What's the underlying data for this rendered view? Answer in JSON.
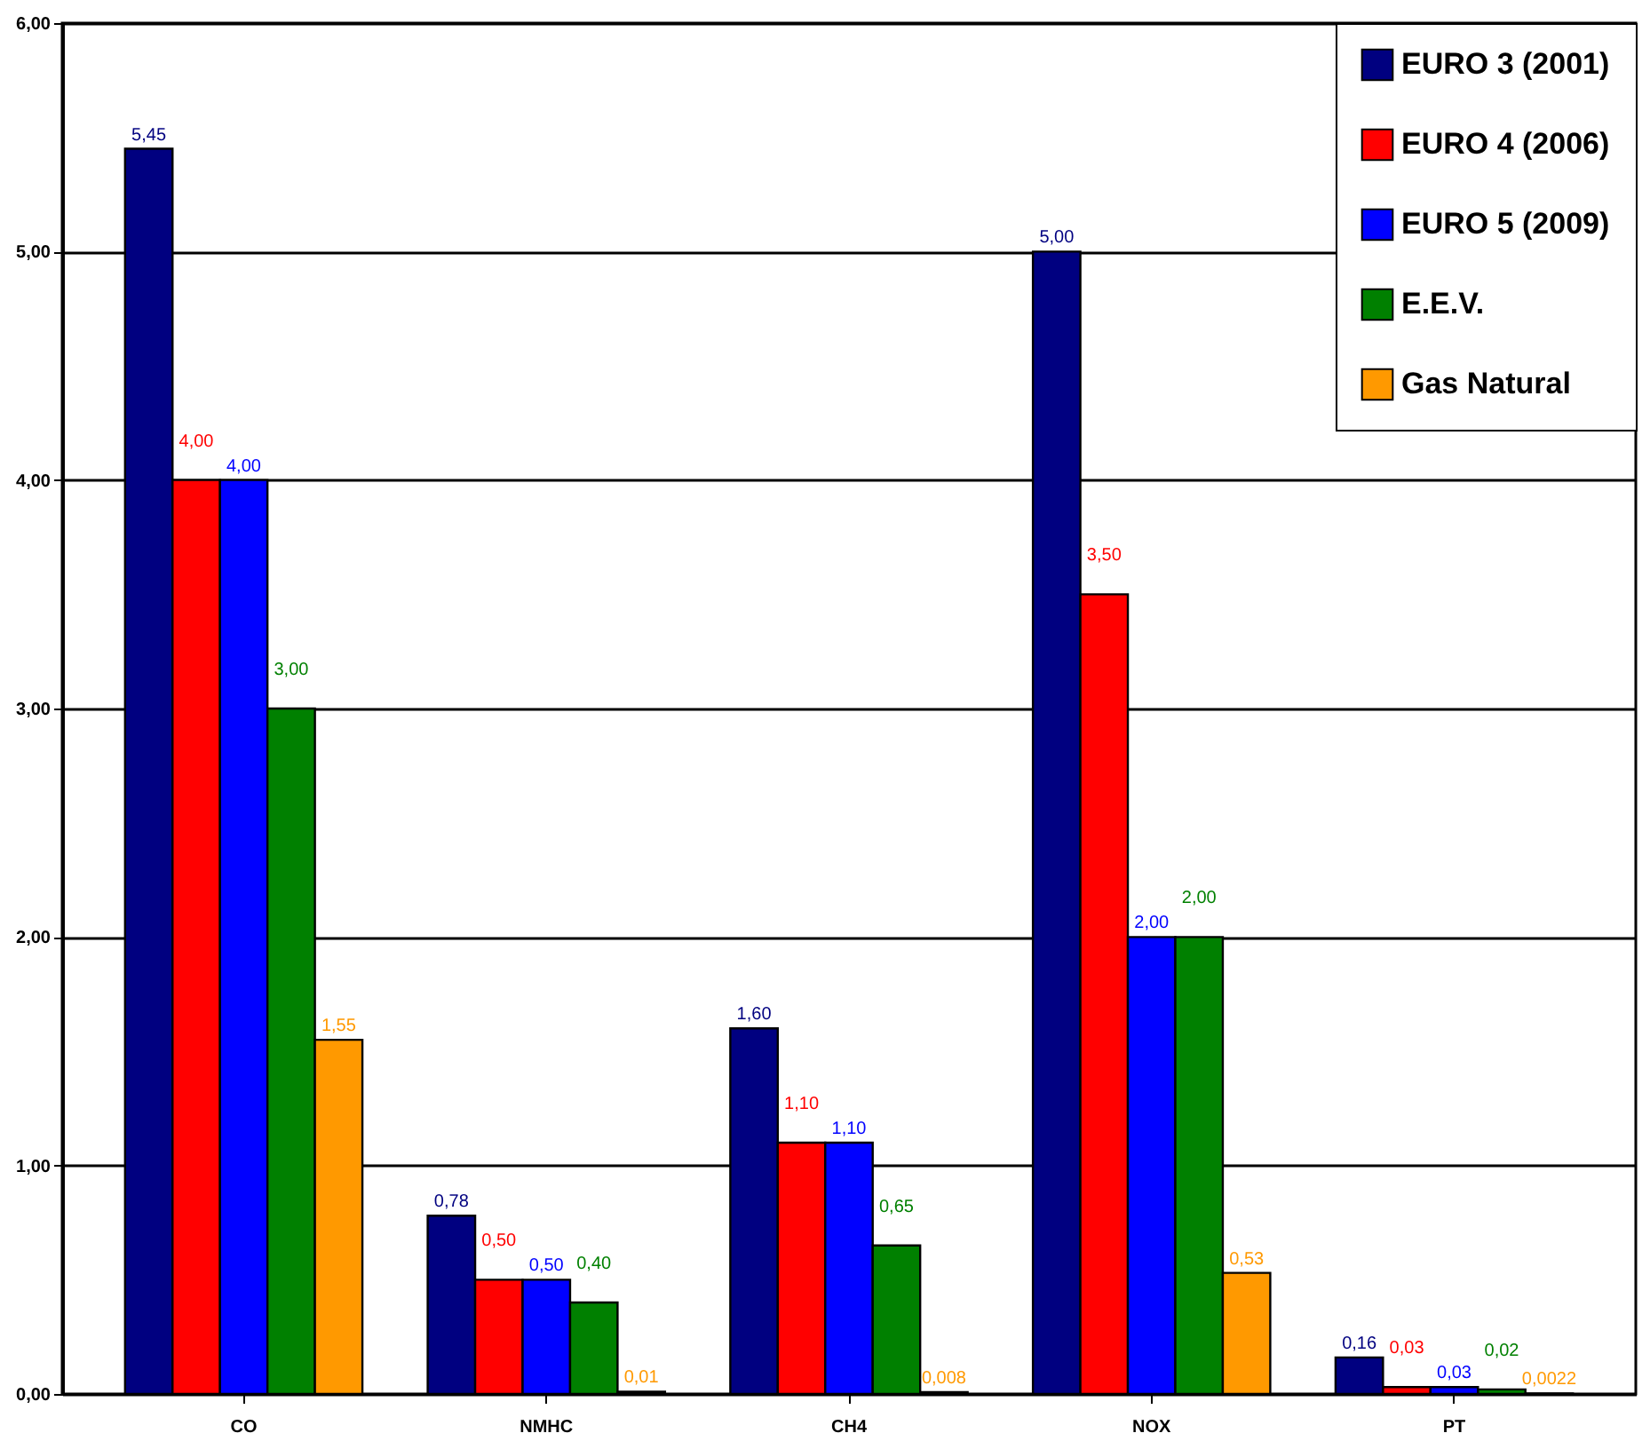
{
  "chart_data": {
    "type": "bar",
    "categories": [
      "CO",
      "NMHC",
      "CH4",
      "NOX",
      "PT"
    ],
    "series": [
      {
        "name": "EURO 3 (2001)",
        "color": "#000080",
        "values": [
          5.45,
          0.78,
          1.6,
          5.0,
          0.16
        ],
        "value_labels": [
          "5,45",
          "0,78",
          "1,60",
          "5,00",
          "0,16"
        ]
      },
      {
        "name": "EURO 4 (2006)",
        "color": "#ff0000",
        "values": [
          4.0,
          0.5,
          1.1,
          3.5,
          0.03
        ],
        "value_labels": [
          "4,00",
          "0,50",
          "1,10",
          "3,50",
          "0,03"
        ]
      },
      {
        "name": "EURO 5 (2009)",
        "color": "#0000ff",
        "values": [
          4.0,
          0.5,
          1.1,
          2.0,
          0.03
        ],
        "value_labels": [
          "4,00",
          "0,50",
          "1,10",
          "2,00",
          "0,03"
        ]
      },
      {
        "name": "E.E.V.",
        "color": "#008000",
        "values": [
          3.0,
          0.4,
          0.65,
          2.0,
          0.02
        ],
        "value_labels": [
          "3,00",
          "0,40",
          "0,65",
          "2,00",
          "0,02"
        ]
      },
      {
        "name": "Gas Natural",
        "color": "#ff9900",
        "values": [
          1.55,
          0.01,
          0.008,
          0.53,
          0.0022
        ],
        "value_labels": [
          "1,55",
          "0,01",
          "0,008",
          "0,53",
          "0,0022"
        ]
      }
    ],
    "ylim": [
      0,
      6
    ],
    "yticks": [
      {
        "value": 0,
        "label": "0,00"
      },
      {
        "value": 1,
        "label": "1,00"
      },
      {
        "value": 2,
        "label": "2,00"
      },
      {
        "value": 3,
        "label": "3,00"
      },
      {
        "value": 4,
        "label": "4,00"
      },
      {
        "value": 5,
        "label": "5,00"
      },
      {
        "value": 6,
        "label": "6,00"
      }
    ],
    "grid": "y",
    "legend": "top right"
  }
}
